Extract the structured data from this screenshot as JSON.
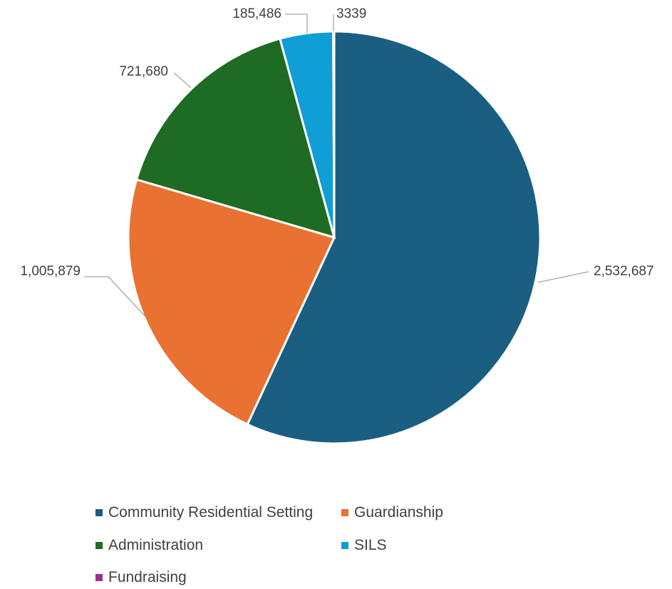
{
  "chart_data": {
    "type": "pie",
    "categories": [
      "Community Residential Setting",
      "Guardianship",
      "Administration",
      "SILS",
      "Fundraising"
    ],
    "values": [
      2532687,
      1005879,
      721680,
      185486,
      3339
    ],
    "value_labels": [
      "2,532,687",
      "1,005,879",
      "721,680",
      "185,486",
      "3339"
    ],
    "colors": [
      "#1a5f82",
      "#e97132",
      "#1e6b24",
      "#0f9ed5",
      "#a02b93"
    ],
    "start_angle_deg": 0,
    "direction": "clockwise",
    "legend_position": "bottom"
  }
}
